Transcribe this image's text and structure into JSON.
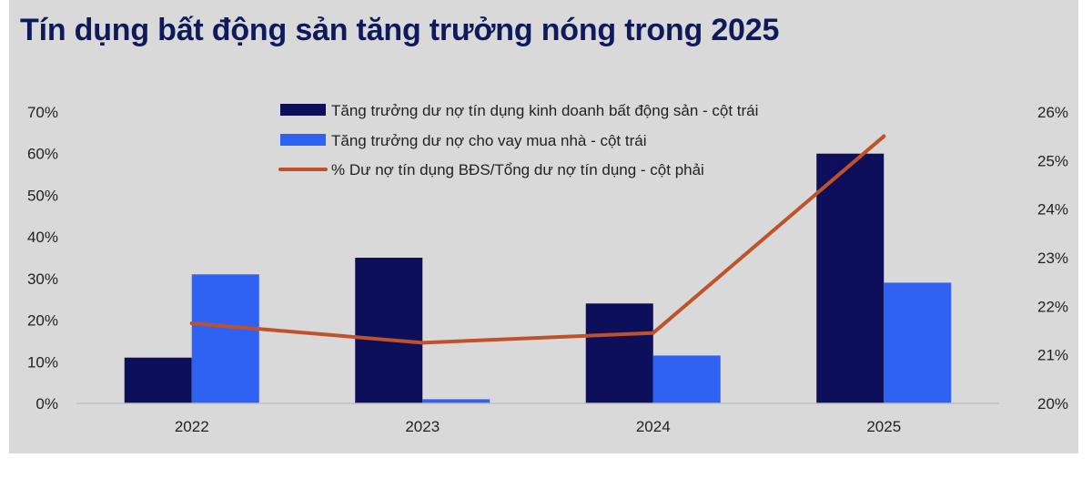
{
  "title": "Tín dụng bất động sản tăng trưởng nóng trong 2025",
  "colors": {
    "background": "#d9d9d9",
    "title": "#0f1a5c",
    "series1": "#0d0f5a",
    "series2": "#2f62f2",
    "line": "#c0522b"
  },
  "chart_data": {
    "type": "bar",
    "categories": [
      "2022",
      "2023",
      "2024",
      "2025"
    ],
    "series": [
      {
        "name": "Tăng trưởng dư nợ tín dụng kinh doanh bất động sản - cột trái",
        "type": "bar",
        "axis": "left",
        "values": [
          11,
          35,
          24,
          60
        ]
      },
      {
        "name": "Tăng trưởng dư nợ cho vay mua nhà - cột trái",
        "type": "bar",
        "axis": "left",
        "values": [
          31,
          1,
          11.5,
          29
        ]
      },
      {
        "name": "% Dư nợ tín dụng BĐS/Tổng dư nợ tín dụng - cột phải",
        "type": "line",
        "axis": "right",
        "values": [
          21.65,
          21.25,
          21.45,
          25.5
        ]
      }
    ],
    "y_left": {
      "min": 0,
      "max": 70,
      "step": 10,
      "ticks": [
        "0%",
        "10%",
        "20%",
        "30%",
        "40%",
        "50%",
        "60%",
        "70%"
      ]
    },
    "y_right": {
      "min": 20,
      "max": 26,
      "step": 1,
      "ticks": [
        "20%",
        "21%",
        "22%",
        "23%",
        "24%",
        "25%",
        "26%"
      ]
    },
    "grid": false,
    "legend_position": "top-center"
  }
}
